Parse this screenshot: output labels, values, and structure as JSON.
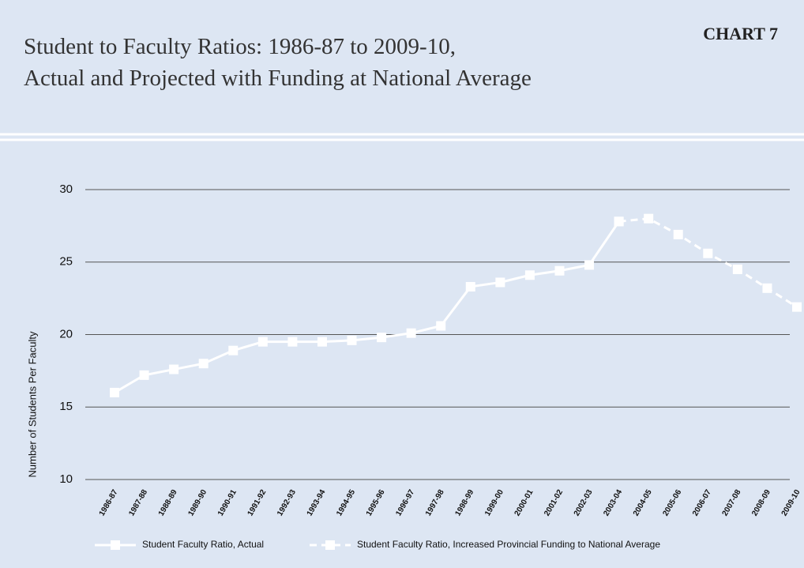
{
  "chart_data": {
    "type": "line",
    "title_lines": [
      "Student to Faculty Ratios: 1986-87 to 2009-10,",
      "Actual and Projected with Funding at National Average"
    ],
    "chart_label": "CHART 7",
    "y_label": "Number of Students Per Faculty",
    "categories": [
      "1986-87",
      "1987-88",
      "1988-89",
      "1989-90",
      "1990-91",
      "1991-92",
      "1992-93",
      "1993-94",
      "1994-95",
      "1995-96",
      "1996-97",
      "1997-98",
      "1998-99",
      "1999-00",
      "2000-01",
      "2001-02",
      "2002-03",
      "2003-04",
      "2004-05",
      "2005-06",
      "2006-07",
      "2007-08",
      "2008-09",
      "2009-10"
    ],
    "series": [
      {
        "name": "Student Faculty Ratio, Actual",
        "color": "#ffffff",
        "line_style": "solid",
        "values": [
          16,
          17.2,
          17.6,
          18,
          18.9,
          19.5,
          19.5,
          19.5,
          19.6,
          19.8,
          20.1,
          20.6,
          23.3,
          23.6,
          24.1,
          24.4,
          24.8,
          27.8,
          null,
          null,
          null,
          null,
          null,
          null
        ]
      },
      {
        "name": "Student Faculty Ratio, Increased Provincial Funding to National Average",
        "color": "#ffffff",
        "line_style": "dashed",
        "values": [
          null,
          null,
          null,
          null,
          null,
          null,
          null,
          null,
          null,
          null,
          null,
          null,
          null,
          null,
          null,
          null,
          null,
          27.8,
          28,
          26.9,
          25.6,
          24.5,
          23.2,
          21.9
        ]
      }
    ],
    "ylim": [
      10,
      30
    ],
    "yticks": [
      10,
      15,
      20,
      25,
      30
    ],
    "grid": true
  }
}
